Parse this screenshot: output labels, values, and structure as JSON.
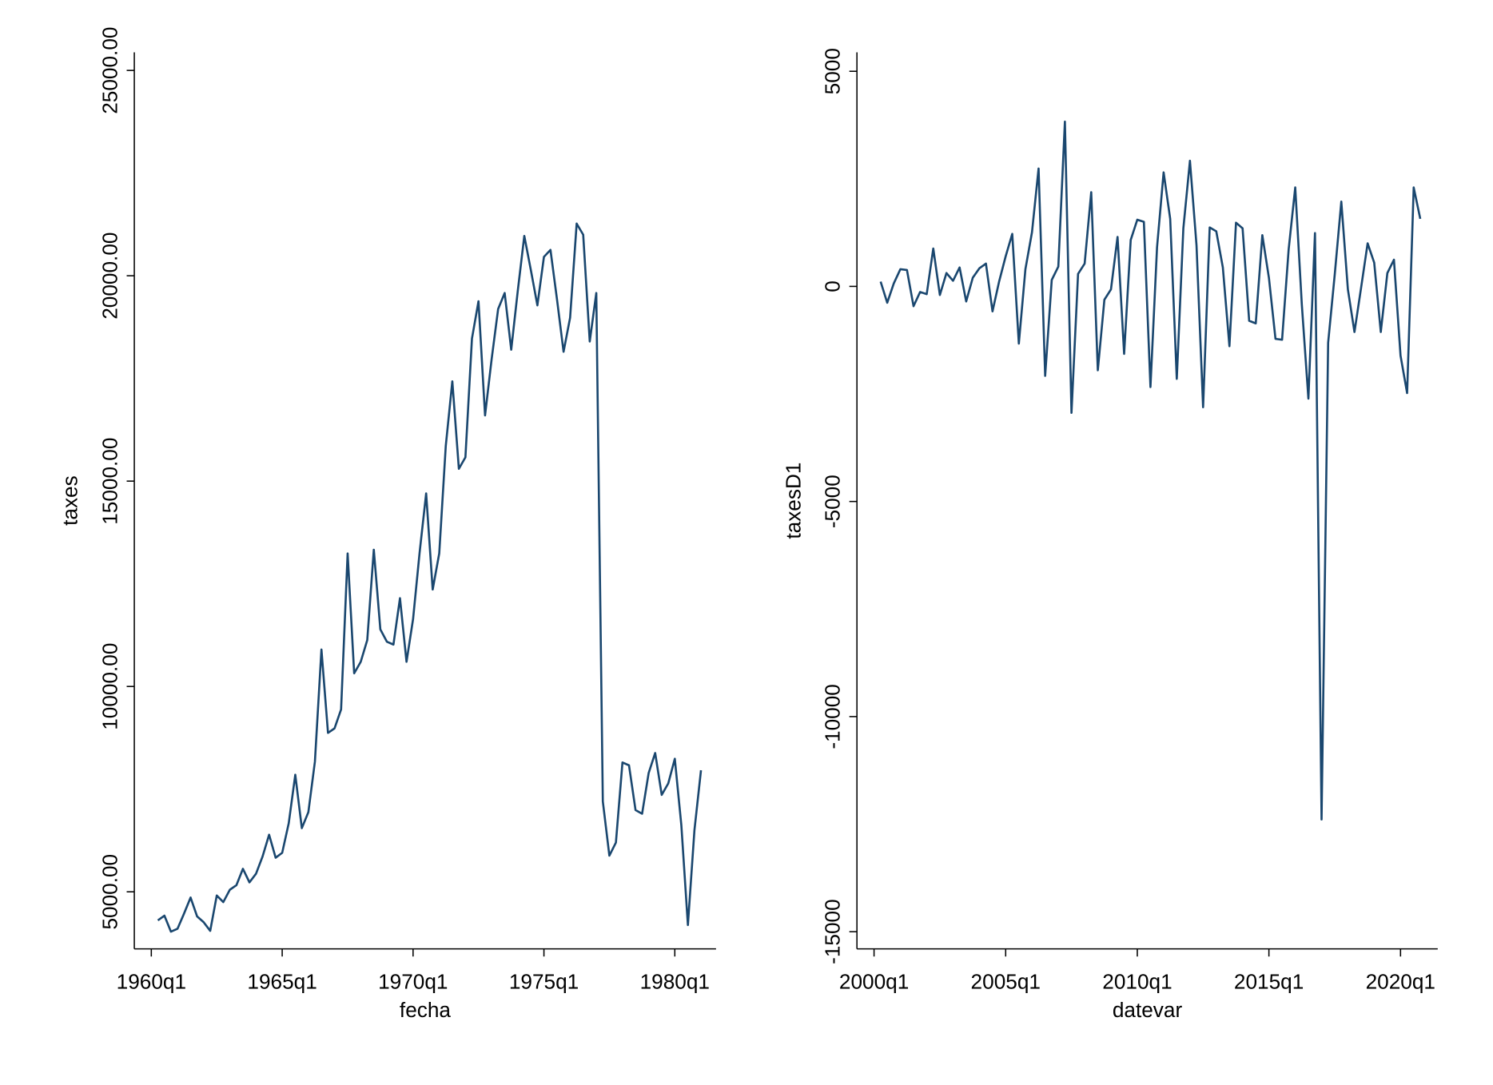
{
  "chart_data": [
    {
      "type": "line",
      "xlabel": "fecha",
      "ylabel": "taxes",
      "color": "#1a476f",
      "x": [
        1,
        2,
        3,
        4,
        5,
        6,
        7,
        8,
        9,
        10,
        11,
        12,
        13,
        14,
        15,
        16,
        17,
        18,
        19,
        20,
        21,
        22,
        23,
        24,
        25,
        26,
        27,
        28,
        29,
        30,
        31,
        32,
        33,
        34,
        35,
        36,
        37,
        38,
        39,
        40,
        41,
        42,
        43,
        44,
        45,
        46,
        47,
        48,
        49,
        50,
        51,
        52,
        53,
        54,
        55,
        56,
        57,
        58,
        59,
        60,
        61,
        62,
        63,
        64,
        65,
        66,
        67,
        68,
        69,
        70,
        71,
        72,
        73,
        74,
        75,
        76,
        77,
        78,
        79,
        80,
        81,
        82,
        83,
        84
      ],
      "values": [
        4305,
        4420,
        4030,
        4100,
        4470,
        4860,
        4400,
        4260,
        4050,
        4910,
        4750,
        5050,
        5160,
        5560,
        5230,
        5440,
        5860,
        6390,
        5830,
        5950,
        6670,
        7850,
        6550,
        6940,
        8170,
        10900,
        8870,
        8980,
        9440,
        13240,
        10320,
        10600,
        11130,
        13330,
        11390,
        11090,
        11020,
        12150,
        10600,
        11640,
        13260,
        14700,
        12360,
        13240,
        15860,
        17430,
        15300,
        15580,
        18470,
        19380,
        16600,
        17960,
        19190,
        19580,
        18200,
        19630,
        20970,
        20140,
        19280,
        20460,
        20630,
        19420,
        18150,
        18980,
        21270,
        21000,
        18400,
        19580,
        7200,
        5880,
        6200,
        8150,
        8080,
        6990,
        6900,
        7890,
        8380,
        7360,
        7640,
        8240,
        6620,
        4190,
        6500,
        7960
      ],
      "xlim": [
        -2.6,
        86.3
      ],
      "xticks": [
        {
          "value": 0,
          "label": "1960q1"
        },
        {
          "value": 20,
          "label": "1965q1"
        },
        {
          "value": 40,
          "label": "1970q1"
        },
        {
          "value": 60,
          "label": "1975q1"
        },
        {
          "value": 80,
          "label": "1980q1"
        }
      ],
      "ylim": [
        3610,
        25440
      ],
      "yticks": [
        {
          "value": 5000,
          "label": "5000.00"
        },
        {
          "value": 10000,
          "label": "10000.00"
        },
        {
          "value": 15000,
          "label": "15000.00"
        },
        {
          "value": 20000,
          "label": "20000.00"
        },
        {
          "value": 25000,
          "label": "25000.00"
        }
      ]
    },
    {
      "type": "line",
      "xlabel": "datevar",
      "ylabel": "taxesD1",
      "color": "#1a476f",
      "x": [
        161,
        162,
        163,
        164,
        165,
        166,
        167,
        168,
        169,
        170,
        171,
        172,
        173,
        174,
        175,
        176,
        177,
        178,
        179,
        180,
        181,
        182,
        183,
        184,
        185,
        186,
        187,
        188,
        189,
        190,
        191,
        192,
        193,
        194,
        195,
        196,
        197,
        198,
        199,
        200,
        201,
        202,
        203,
        204,
        205,
        206,
        207,
        208,
        209,
        210,
        211,
        212,
        213,
        214,
        215,
        216,
        217,
        218,
        219,
        220,
        221,
        222,
        223,
        224,
        225,
        226,
        227,
        228,
        229,
        230,
        231,
        232,
        233,
        234,
        235,
        236,
        237,
        238,
        239,
        240,
        241,
        242,
        243
      ],
      "values": [
        110,
        -380,
        70,
        400,
        380,
        -460,
        -130,
        -180,
        880,
        -200,
        310,
        130,
        440,
        -350,
        200,
        420,
        530,
        -580,
        110,
        700,
        1220,
        -1330,
        400,
        1260,
        2740,
        -2080,
        150,
        460,
        3830,
        -2940,
        290,
        530,
        2190,
        -1950,
        -310,
        -70,
        1150,
        -1570,
        1080,
        1550,
        1500,
        -2340,
        910,
        2650,
        1570,
        -2150,
        1350,
        2920,
        950,
        -2810,
        1370,
        1280,
        440,
        -1390,
        1480,
        1350,
        -800,
        -860,
        1190,
        200,
        -1220,
        -1240,
        860,
        2300,
        -420,
        -2610,
        1240,
        -12390,
        -1310,
        270,
        1970,
        -70,
        -1060,
        -40,
        1000,
        550,
        -1060,
        310,
        620,
        -1610,
        -2480,
        2300,
        1570
      ],
      "xlim": [
        157.4,
        245.65
      ],
      "xticks": [
        {
          "value": 160,
          "label": "2000q1"
        },
        {
          "value": 180,
          "label": "2005q1"
        },
        {
          "value": 200,
          "label": "2010q1"
        },
        {
          "value": 220,
          "label": "2015q1"
        },
        {
          "value": 240,
          "label": "2020q1"
        }
      ],
      "ylim": [
        -15400,
        5440
      ],
      "yticks": [
        -15000,
        -10000,
        -5000,
        0,
        5000
      ]
    }
  ]
}
